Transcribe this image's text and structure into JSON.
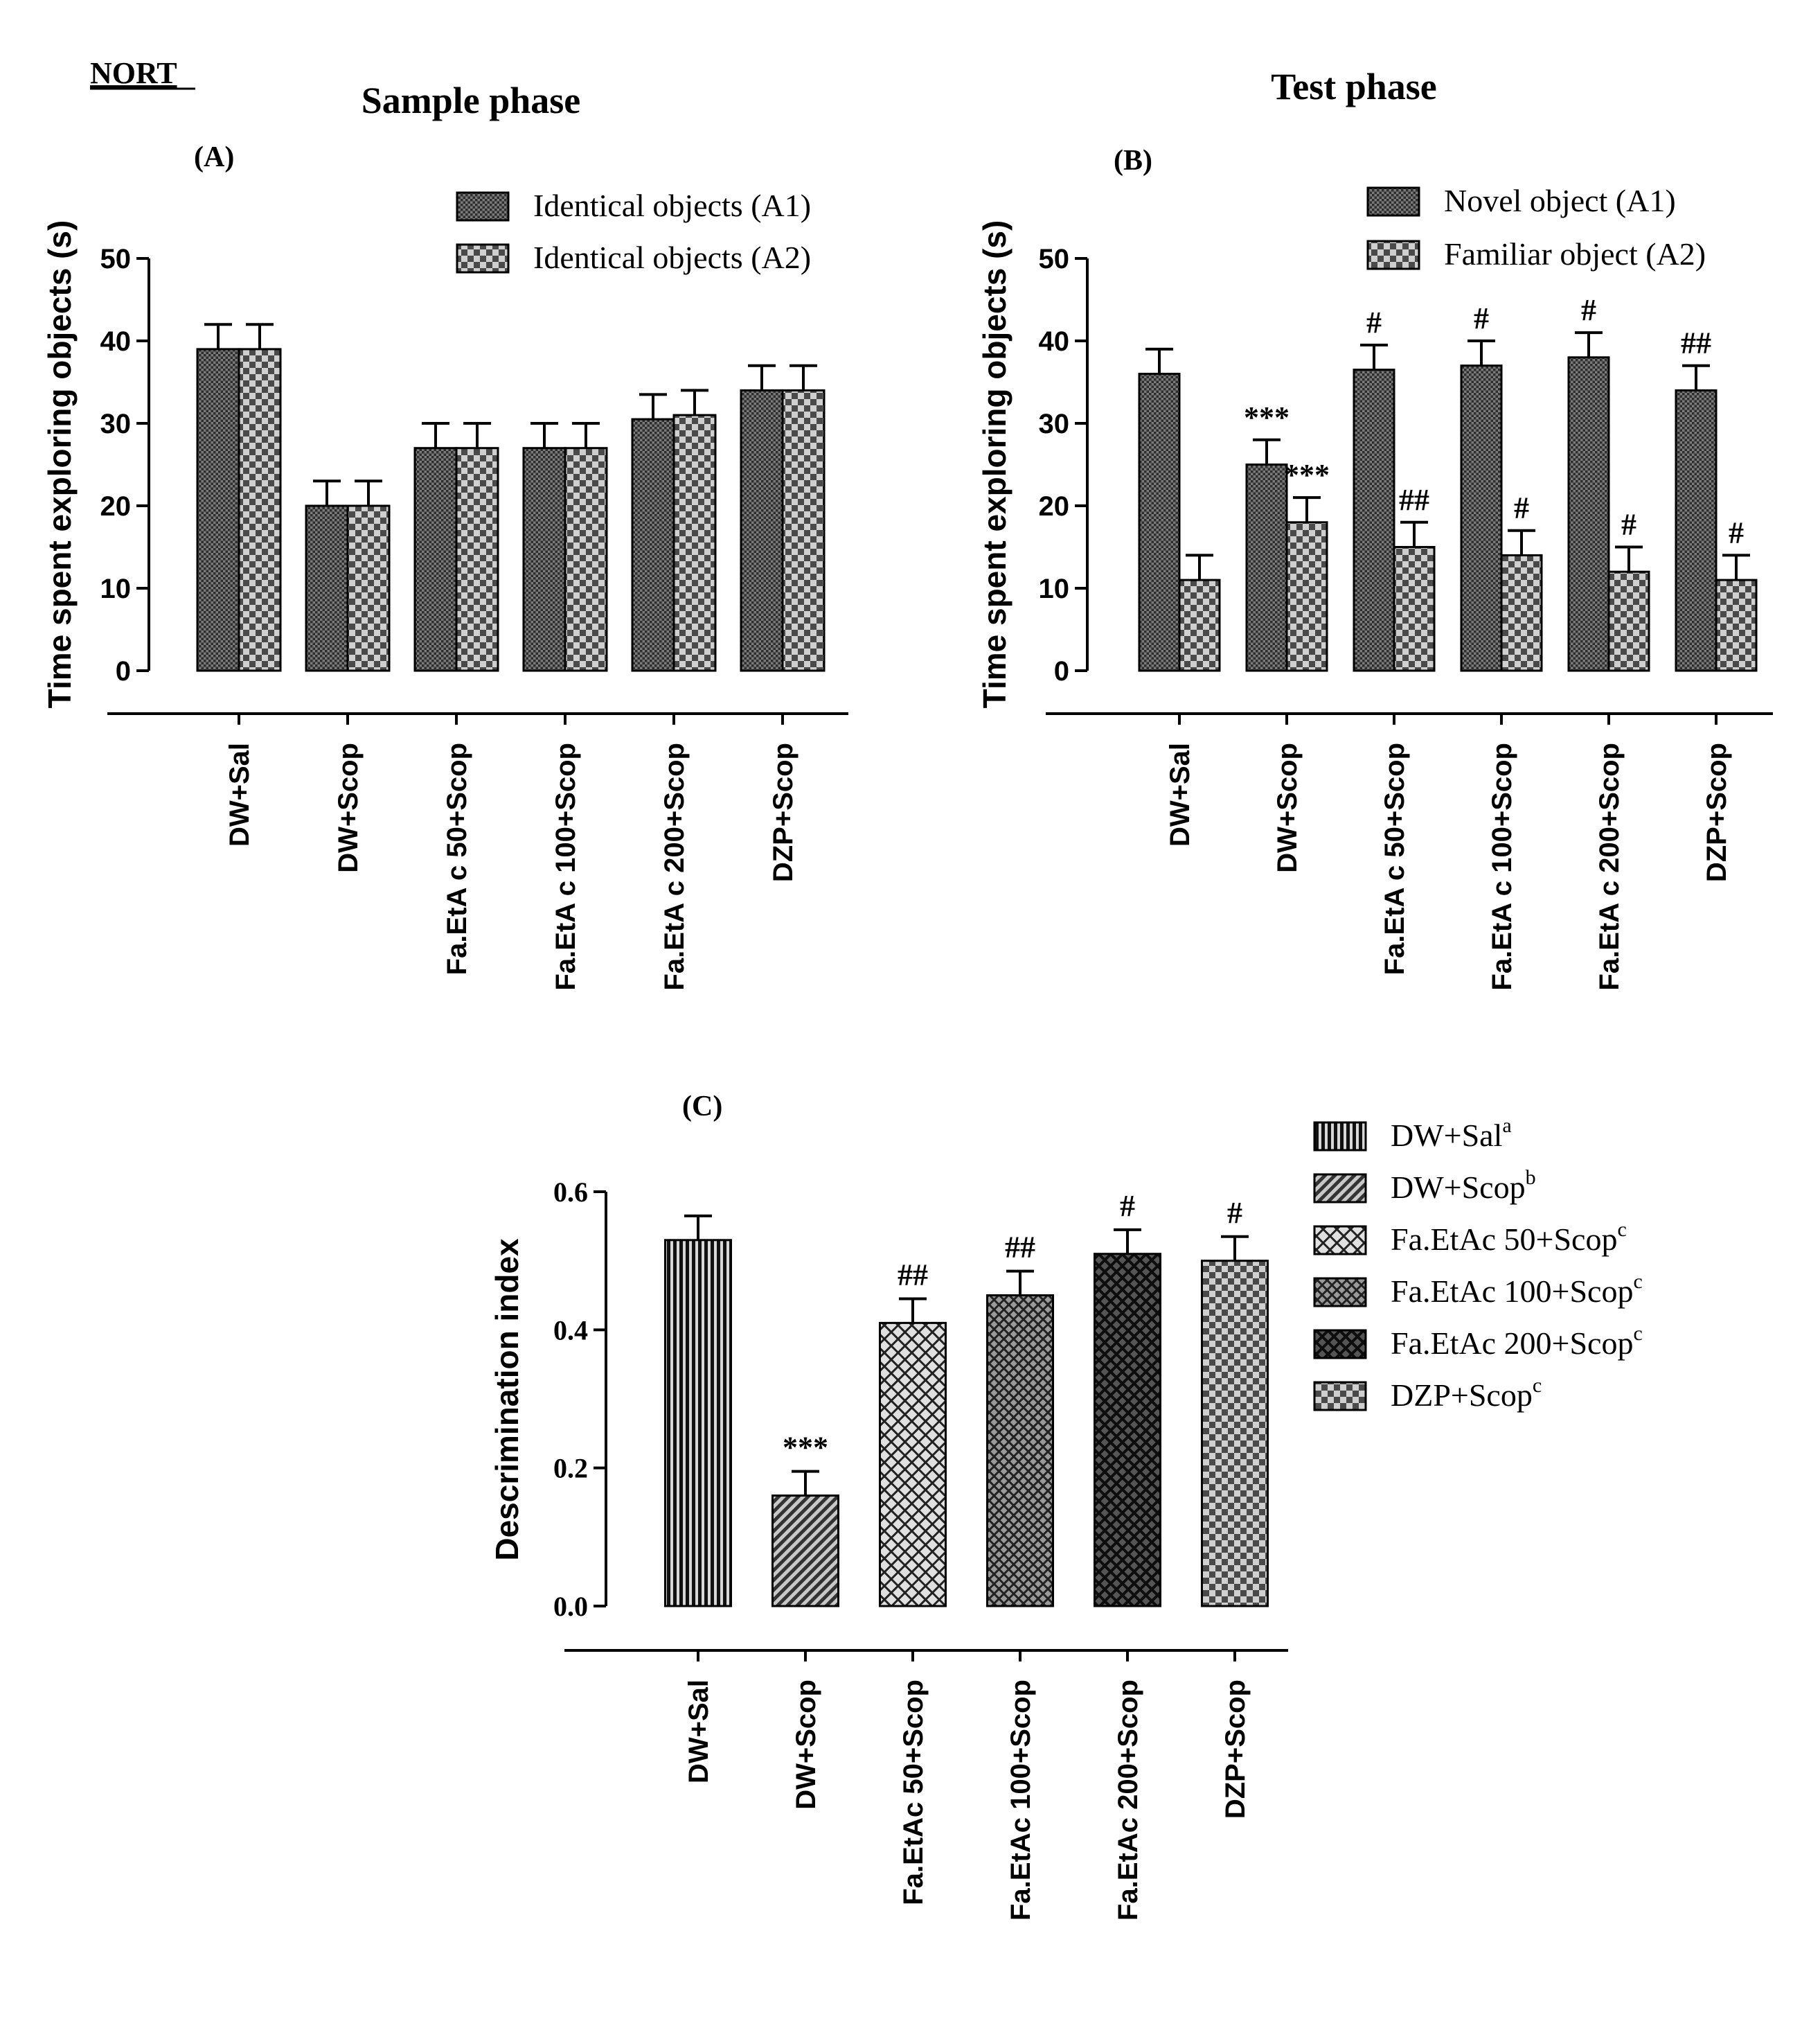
{
  "figure_label": "NORT",
  "chart_data": [
    {
      "id": "A",
      "type": "bar",
      "panel_label": "(A)",
      "title": "Sample phase",
      "ylabel": "Time spent exploring objects (s)",
      "xlabel": "",
      "ylim": [
        0,
        50
      ],
      "yticks": [
        "0",
        "10",
        "20",
        "30",
        "40",
        "50"
      ],
      "grid": false,
      "legend_position": "top-right",
      "categories": [
        "DW+Sal",
        "DW+Scop",
        "Fa.EtA c 50+Scop",
        "Fa.EtA c 100+Scop",
        "Fa.EtA c 200+Scop",
        "DZP+Scop"
      ],
      "series": [
        {
          "name": "Identical objects (A1)",
          "pattern": "dense-check",
          "values": [
            39,
            20,
            27,
            27,
            30.5,
            34
          ],
          "errors": [
            3,
            3,
            3,
            3,
            3,
            3
          ]
        },
        {
          "name": "Identical objects (A2)",
          "pattern": "checker",
          "values": [
            39,
            20,
            27,
            27,
            31,
            34
          ],
          "errors": [
            3,
            3,
            3,
            3,
            3,
            3
          ]
        }
      ],
      "annotations": []
    },
    {
      "id": "B",
      "type": "bar",
      "panel_label": "(B)",
      "title": "Test phase",
      "ylabel": "Time spent exploring objects (s)",
      "xlabel": "",
      "ylim": [
        0,
        50
      ],
      "yticks": [
        "0",
        "10",
        "20",
        "30",
        "40",
        "50"
      ],
      "grid": false,
      "legend_position": "top-right",
      "categories": [
        "DW+Sal",
        "DW+Scop",
        "Fa.EtA c 50+Scop",
        "Fa.EtA c 100+Scop",
        "Fa.EtA c 200+Scop",
        "DZP+Scop"
      ],
      "series": [
        {
          "name": "Novel object (A1)",
          "pattern": "dense-check",
          "values": [
            36,
            25,
            36.5,
            37,
            38,
            34
          ],
          "errors": [
            3,
            3,
            3,
            3,
            3,
            3
          ]
        },
        {
          "name": "Familiar object (A2)",
          "pattern": "checker",
          "values": [
            11,
            18,
            15,
            14,
            12,
            11
          ],
          "errors": [
            3,
            3,
            3,
            3,
            3,
            3
          ]
        }
      ],
      "annotations": [
        [
          null,
          null
        ],
        [
          "***",
          "***"
        ],
        [
          "#",
          "##"
        ],
        [
          "#",
          "#"
        ],
        [
          "#",
          "#"
        ],
        [
          "##",
          "#"
        ]
      ]
    },
    {
      "id": "C",
      "type": "bar",
      "panel_label": "(C)",
      "title": "",
      "ylabel": "Descrimination index",
      "xlabel": "",
      "ylim": [
        0,
        0.6
      ],
      "yticks": [
        "0.0",
        "0.2",
        "0.4",
        "0.6"
      ],
      "grid": false,
      "legend_position": "right",
      "categories": [
        "DW+Sal",
        "DW+Scop",
        "Fa.EtAc 50+Scop",
        "Fa.EtAc 100+Scop",
        "Fa.EtAc 200+Scop",
        "DZP+Scop"
      ],
      "values": [
        0.53,
        0.16,
        0.41,
        0.45,
        0.51,
        0.5
      ],
      "errors": [
        0.035,
        0.035,
        0.035,
        0.035,
        0.035,
        0.035
      ],
      "patterns": [
        "vertical-lines",
        "diagonal-lines",
        "crosshatch-light",
        "crosshatch-dense",
        "crosshatch-dark",
        "checker"
      ],
      "annotations": [
        null,
        "***",
        "##",
        "##",
        "#",
        "#"
      ],
      "legend": [
        {
          "label": "DW+Sal",
          "sup": "a"
        },
        {
          "label": "DW+Scop",
          "sup": "b"
        },
        {
          "label": "Fa.EtAc 50+Scop",
          "sup": "c"
        },
        {
          "label": "Fa.EtAc 100+Scop",
          "sup": "c"
        },
        {
          "label": "Fa.EtAc 200+Scop",
          "sup": "c"
        },
        {
          "label": "DZP+Scop",
          "sup": "c"
        }
      ]
    }
  ]
}
